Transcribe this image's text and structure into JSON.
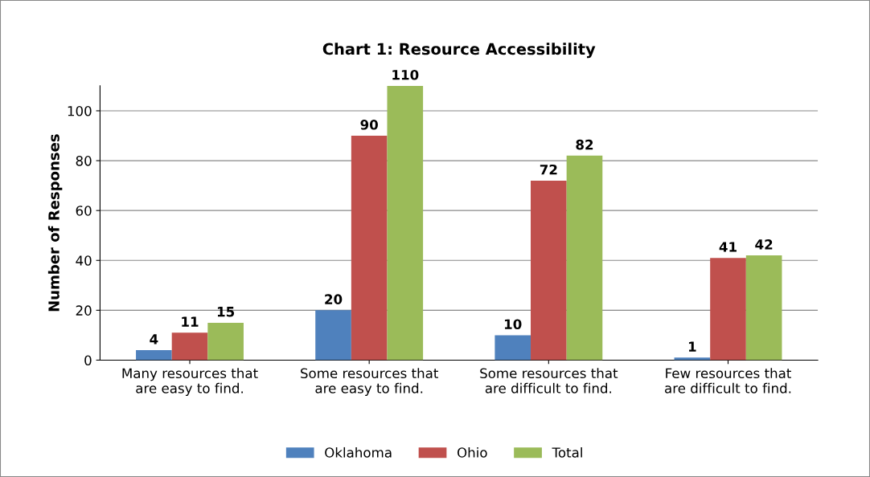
{
  "chart_data": {
    "type": "bar",
    "title": "Chart 1: Resource Accessibility",
    "ylabel": "Number of Responses",
    "categories": [
      "Many resources that\nare easy to find.",
      "Some resources that\nare easy to find.",
      "Some resources that\nare difficult to find.",
      "Few resources that\nare difficult to find."
    ],
    "series": [
      {
        "name": "Oklahoma",
        "color": "#4f81bd",
        "values": [
          4,
          20,
          10,
          1
        ]
      },
      {
        "name": "Ohio",
        "color": "#c0504d",
        "values": [
          11,
          90,
          72,
          41
        ]
      },
      {
        "name": "Total",
        "color": "#9bbb59",
        "values": [
          15,
          110,
          82,
          42
        ]
      }
    ],
    "ylim": [
      0,
      110
    ],
    "yticks": [
      0,
      20,
      40,
      60,
      80,
      100
    ],
    "grid": "y",
    "legend": "bottom",
    "data_labels": true
  }
}
